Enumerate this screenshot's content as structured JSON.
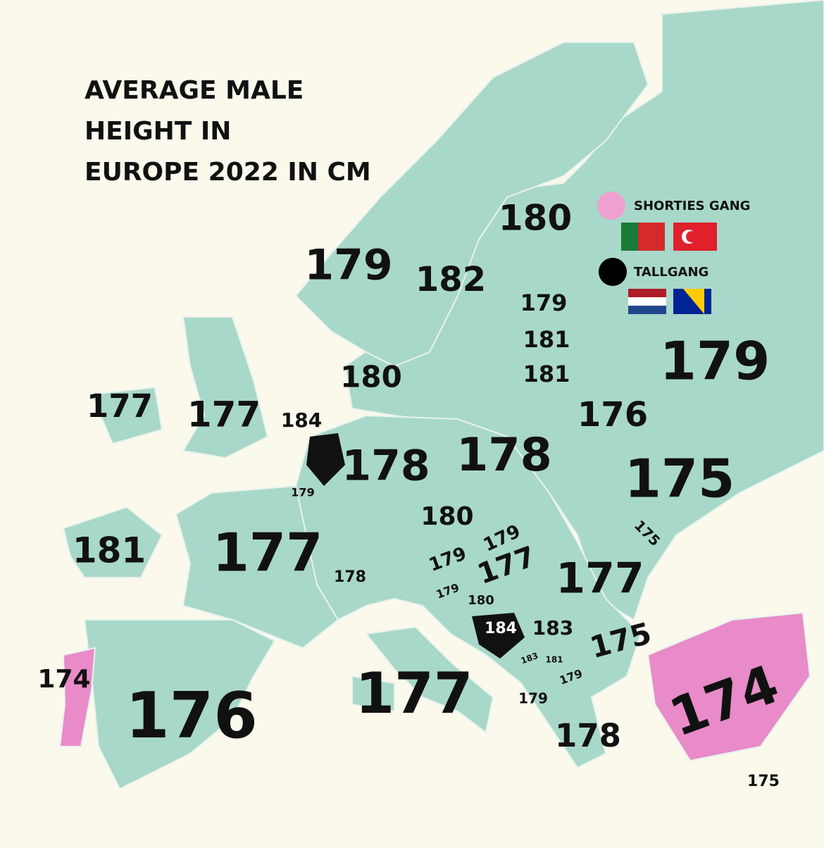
{
  "title": [
    "AVERAGE MALE",
    "HEIGHT IN",
    "EUROPE 2022 IN CM"
  ],
  "legend": {
    "short": "SHORTIES GANG",
    "tall": "TALLGANG"
  },
  "labels": [
    180,
    179,
    182,
    179,
    181,
    181,
    179,
    180,
    177,
    177,
    184,
    176,
    178,
    178,
    175,
    179,
    180,
    181,
    177,
    179,
    175,
    178,
    179,
    177,
    177,
    179,
    180,
    184,
    183,
    175,
    174,
    183,
    181,
    179,
    176,
    177,
    179,
    178,
    174,
    175
  ]
}
